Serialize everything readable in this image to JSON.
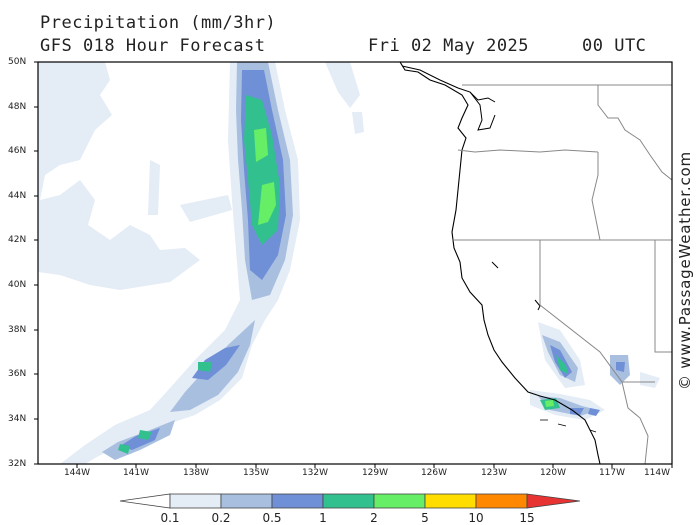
{
  "header": {
    "title": "Precipitation (mm/3hr)",
    "model": "GFS 018 Hour Forecast",
    "date": "Fri 02 May 2025",
    "time": "00 UTC"
  },
  "map": {
    "latitude_labels": [
      "50N",
      "48N",
      "46N",
      "44N",
      "42N",
      "40N",
      "38N",
      "36N",
      "34N",
      "32N"
    ],
    "longitude_labels": [
      "144W",
      "141W",
      "138W",
      "135W",
      "132W",
      "129W",
      "126W",
      "123W",
      "120W",
      "117W",
      "114W"
    ],
    "lat_range": [
      32,
      50
    ],
    "lon_range": [
      -145.5,
      -113.5
    ],
    "colors": {
      "land_border": "#000000",
      "state_border": "#888888",
      "frame": "#000000"
    }
  },
  "legend": {
    "labels": [
      "0.1",
      "0.2",
      "0.5",
      "1",
      "2",
      "5",
      "10",
      "15"
    ],
    "colors": [
      "#ffffff",
      "#e4ecf6",
      "#a9bfe0",
      "#6f8fd6",
      "#33c08f",
      "#66ee66",
      "#ffdd00",
      "#ff8800",
      "#e83333"
    ]
  },
  "credit": "© www.PassageWeather.com"
}
